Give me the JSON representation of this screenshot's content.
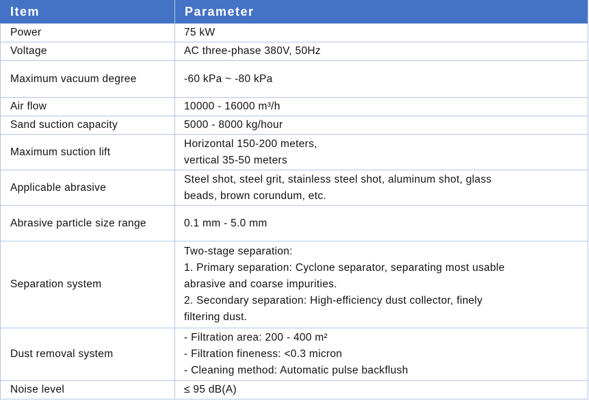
{
  "header": {
    "item": "Item",
    "parameter": "Parameter"
  },
  "rows": [
    {
      "item": "Power",
      "value": [
        "75 kW"
      ]
    },
    {
      "item": "Voltage",
      "value": [
        "AC three-phase 380V, 50Hz"
      ]
    },
    {
      "item": "Maximum vacuum degree",
      "value": [
        "-60 kPa ~ -80 kPa"
      ]
    },
    {
      "item": "Air flow",
      "value": [
        "10000 - 16000 m³/h"
      ]
    },
    {
      "item": "Sand suction capacity",
      "value": [
        "5000 - 8000 kg/hour"
      ]
    },
    {
      "item": "Maximum suction lift",
      "value": [
        "Horizontal 150-200 meters,",
        "vertical 35-50 meters"
      ]
    },
    {
      "item": "Applicable abrasive",
      "value": [
        "Steel shot, steel grit, stainless steel shot, aluminum shot, glass",
        "beads, brown corundum, etc."
      ]
    },
    {
      "item": "Abrasive particle size range",
      "value": [
        "0.1 mm - 5.0 mm"
      ]
    },
    {
      "item": "Separation system",
      "value": [
        "Two-stage separation:",
        "1. Primary separation: Cyclone separator, separating most usable",
        "abrasive and coarse impurities.",
        "2. Secondary separation: High-efficiency dust collector, finely",
        "filtering dust."
      ]
    },
    {
      "item": "Dust removal system",
      "value": [
        "- Filtration area: 200 - 400 m²",
        "- Filtration fineness: <0.3 micron",
        "- Cleaning method: Automatic pulse backflush"
      ]
    },
    {
      "item": "Noise level",
      "value": [
        "≤ 95 dB(A)"
      ]
    }
  ]
}
